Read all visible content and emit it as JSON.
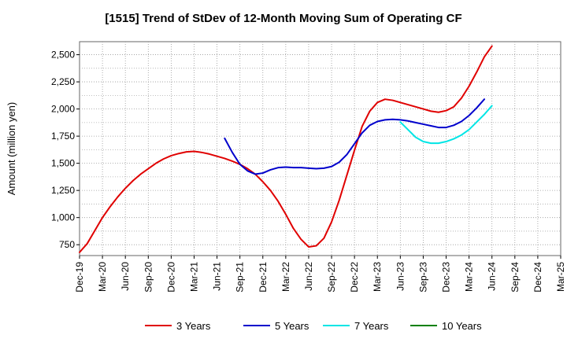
{
  "chart_data": {
    "type": "line",
    "title": "[1515]  Trend of StDev of 12-Month Moving Sum of Operating CF",
    "ylabel": "Amount (million yen)",
    "xlabel": "",
    "x_tick_labels": [
      "Dec-19",
      "Mar-20",
      "Jun-20",
      "Sep-20",
      "Dec-20",
      "Mar-21",
      "Jun-21",
      "Sep-21",
      "Dec-21",
      "Mar-22",
      "Jun-22",
      "Sep-22",
      "Dec-22",
      "Mar-23",
      "Jun-23",
      "Sep-23",
      "Dec-23",
      "Mar-24",
      "Jun-24",
      "Sep-24",
      "Dec-24",
      "Mar-25"
    ],
    "y_ticks": [
      750,
      1000,
      1250,
      1500,
      1750,
      2000,
      2250,
      2500
    ],
    "y_tick_labels": [
      "750",
      "1,000",
      "1,250",
      "1,500",
      "1,750",
      "2,000",
      "2,250",
      "2,500"
    ],
    "ylim": [
      650,
      2620
    ],
    "grid": true,
    "legend_position": "bottom",
    "series": [
      {
        "name": "3 Years",
        "color": "#e00000",
        "start_index": 0,
        "values": [
          680,
          760,
          880,
          1000,
          1100,
          1190,
          1270,
          1340,
          1400,
          1450,
          1500,
          1540,
          1570,
          1590,
          1605,
          1610,
          1600,
          1585,
          1565,
          1545,
          1520,
          1490,
          1450,
          1400,
          1330,
          1250,
          1150,
          1030,
          900,
          800,
          730,
          740,
          810,
          960,
          1160,
          1390,
          1620,
          1840,
          1980,
          2060,
          2090,
          2080,
          2060,
          2040,
          2020,
          2000,
          1980,
          1970,
          1985,
          2020,
          2100,
          2210,
          2340,
          2480,
          2580
        ]
      },
      {
        "name": "5 Years",
        "color": "#0000cc",
        "start_index": 19,
        "values": [
          1730,
          1600,
          1490,
          1430,
          1400,
          1410,
          1440,
          1460,
          1465,
          1460,
          1460,
          1455,
          1450,
          1455,
          1470,
          1510,
          1580,
          1680,
          1780,
          1850,
          1885,
          1900,
          1905,
          1900,
          1890,
          1875,
          1860,
          1845,
          1830,
          1830,
          1850,
          1885,
          1940,
          2010,
          2090
        ]
      },
      {
        "name": "7 Years",
        "color": "#00e5e5",
        "start_index": 42,
        "values": [
          1880,
          1810,
          1740,
          1700,
          1685,
          1685,
          1700,
          1725,
          1760,
          1810,
          1880,
          1950,
          2030
        ]
      },
      {
        "name": "10 Years",
        "color": "#008000",
        "start_index": 0,
        "values": []
      }
    ]
  }
}
